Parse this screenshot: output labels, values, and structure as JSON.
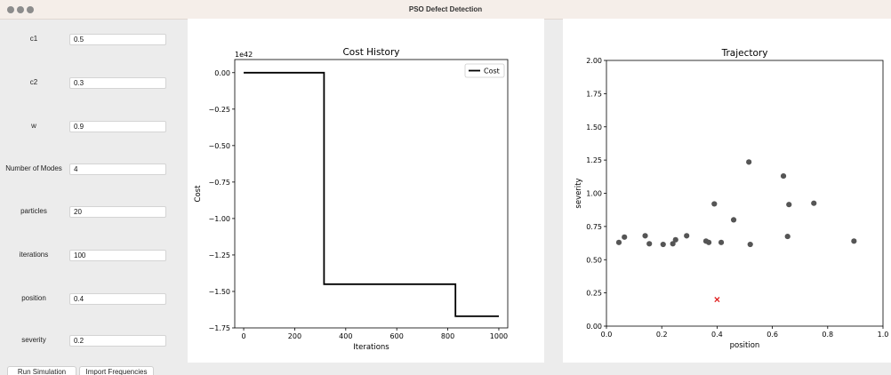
{
  "window": {
    "title": "PSO Defect Detection"
  },
  "params": [
    {
      "key": "c1",
      "label": "c1",
      "value": "0.5"
    },
    {
      "key": "c2",
      "label": "c2",
      "value": "0.3"
    },
    {
      "key": "w",
      "label": "w",
      "value": "0.9"
    },
    {
      "key": "modes",
      "label": "Number of Modes",
      "value": "4"
    },
    {
      "key": "particles",
      "label": "particles",
      "value": "20"
    },
    {
      "key": "iterations",
      "label": "iterations",
      "value": "100"
    },
    {
      "key": "position",
      "label": "position",
      "value": "0.4"
    },
    {
      "key": "severity",
      "label": "severity",
      "value": "0.2"
    }
  ],
  "buttons": {
    "run": "Run Simulation",
    "import": "Import Frequencies"
  },
  "chart_data": [
    {
      "type": "line",
      "title": "Cost History",
      "xlabel": "Iterations",
      "ylabel": "Cost",
      "y_offset_label": "1e42",
      "xlim": [
        -35,
        1035
      ],
      "ylim": [
        -1.75,
        0.09
      ],
      "xticks": [
        0,
        200,
        400,
        600,
        800,
        1000
      ],
      "xtick_labels": [
        "0",
        "200",
        "400",
        "600",
        "800",
        "1000"
      ],
      "yticks": [
        0.0,
        -0.25,
        -0.5,
        -0.75,
        -1.0,
        -1.25,
        -1.5,
        -1.75
      ],
      "ytick_labels": [
        "0.00",
        "−0.25",
        "−0.50",
        "−0.75",
        "−1.00",
        "−1.25",
        "−1.50",
        "−1.75"
      ],
      "legend": {
        "placement": "top-right",
        "entries": [
          "Cost"
        ]
      },
      "grid": false,
      "series": [
        {
          "name": "Cost",
          "color": "#000000",
          "x": [
            0,
            315,
            315,
            830,
            830,
            1000
          ],
          "y": [
            0.0,
            0.0,
            -1.45,
            -1.45,
            -1.67,
            -1.67
          ]
        }
      ]
    },
    {
      "type": "scatter",
      "title": "Trajectory",
      "xlabel": "position",
      "ylabel": "severity",
      "xlim": [
        0.0,
        1.0
      ],
      "ylim": [
        0.0,
        2.0
      ],
      "xticks": [
        0.0,
        0.2,
        0.4,
        0.6,
        0.8,
        1.0
      ],
      "xtick_labels": [
        "0.0",
        "0.2",
        "0.4",
        "0.6",
        "0.8",
        "1.0"
      ],
      "yticks": [
        0.0,
        0.25,
        0.5,
        0.75,
        1.0,
        1.25,
        1.5,
        1.75,
        2.0
      ],
      "ytick_labels": [
        "0.00",
        "0.25",
        "0.50",
        "0.75",
        "1.00",
        "1.25",
        "1.50",
        "1.75",
        "2.00"
      ],
      "grid": false,
      "series": [
        {
          "marker": "circle",
          "color": "#555555",
          "points": [
            [
              0.045,
              0.63
            ],
            [
              0.065,
              0.67
            ],
            [
              0.14,
              0.68
            ],
            [
              0.155,
              0.62
            ],
            [
              0.205,
              0.615
            ],
            [
              0.24,
              0.62
            ],
            [
              0.25,
              0.65
            ],
            [
              0.29,
              0.68
            ],
            [
              0.36,
              0.64
            ],
            [
              0.37,
              0.63
            ],
            [
              0.39,
              0.92
            ],
            [
              0.415,
              0.63
            ],
            [
              0.46,
              0.8
            ],
            [
              0.515,
              1.235
            ],
            [
              0.52,
              0.615
            ],
            [
              0.64,
              1.13
            ],
            [
              0.655,
              0.675
            ],
            [
              0.66,
              0.915
            ],
            [
              0.75,
              0.925
            ],
            [
              0.895,
              0.64
            ]
          ]
        },
        {
          "marker": "x",
          "color": "#e02020",
          "points": [
            [
              0.4,
              0.2
            ]
          ]
        }
      ]
    }
  ]
}
